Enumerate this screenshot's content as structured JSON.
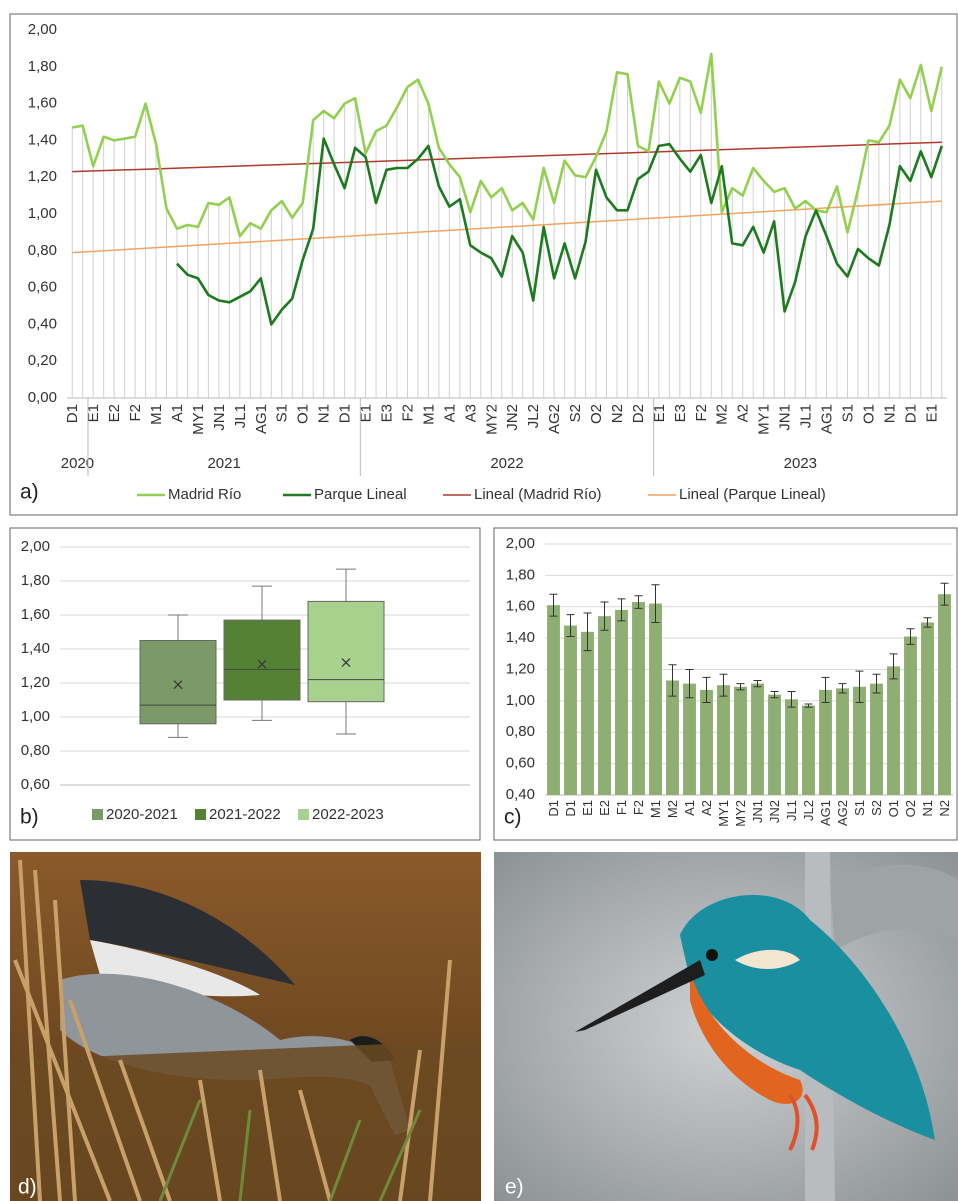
{
  "chart_data": [
    {
      "type": "line",
      "panel_label": "a)",
      "categories": [
        "D1",
        null,
        "E1",
        null,
        "E2",
        null,
        "F2",
        null,
        "M1",
        null,
        "A1",
        null,
        "MY1",
        null,
        "JN1",
        null,
        "JL1",
        null,
        "AG1",
        null,
        "S1",
        null,
        "O1",
        null,
        "N1",
        null,
        "D1",
        null,
        "E1",
        null,
        "E3",
        null,
        "F2",
        null,
        "M1",
        null,
        "A1",
        null,
        "A3",
        null,
        "MY2",
        null,
        "JN2",
        null,
        "JL2",
        null,
        "AG2",
        null,
        "S2",
        null,
        "O2",
        null,
        "N2",
        null,
        "D2",
        null,
        "E1",
        null,
        "E3",
        null,
        "F2",
        null,
        "M2",
        null,
        "A2",
        null,
        "MY1",
        null,
        "JN1",
        null,
        "JL1",
        null,
        "AG1",
        null,
        "S1",
        null,
        "O1",
        null,
        "N1",
        null,
        "D1",
        null,
        "E1",
        null
      ],
      "year_groups": [
        {
          "label": "2020",
          "span": 2
        },
        {
          "label": "2021",
          "span": 26
        },
        {
          "label": "2022",
          "span": 28
        },
        {
          "label": "2023",
          "span": 28
        }
      ],
      "series": [
        {
          "name": "Madrid Río",
          "color": "#92d050",
          "values": [
            1.47,
            1.48,
            1.26,
            1.42,
            1.4,
            1.41,
            1.42,
            1.6,
            1.38,
            1.03,
            0.92,
            0.94,
            0.93,
            1.06,
            1.05,
            1.09,
            0.88,
            0.95,
            0.92,
            1.02,
            1.07,
            0.98,
            1.06,
            1.51,
            1.56,
            1.52,
            1.6,
            1.63,
            1.33,
            1.45,
            1.48,
            1.58,
            1.69,
            1.73,
            1.6,
            1.36,
            1.27,
            1.2,
            1.01,
            1.18,
            1.09,
            1.14,
            1.02,
            1.06,
            0.97,
            1.25,
            1.06,
            1.29,
            1.21,
            1.2,
            1.31,
            1.45,
            1.77,
            1.76,
            1.37,
            1.34,
            1.72,
            1.6,
            1.74,
            1.72,
            1.55,
            1.87,
            1.01,
            1.14,
            1.1,
            1.25,
            1.18,
            1.12,
            1.14,
            1.03,
            1.07,
            1.02,
            1.01,
            1.15,
            0.9,
            1.13,
            1.4,
            1.39,
            1.48,
            1.73,
            1.63,
            1.81,
            1.56,
            1.8
          ]
        },
        {
          "name": "Parque Lineal",
          "color": "#1e7a1e",
          "values": [
            null,
            null,
            null,
            null,
            null,
            null,
            null,
            null,
            null,
            null,
            0.73,
            0.67,
            0.65,
            0.56,
            0.53,
            0.52,
            0.55,
            0.58,
            0.65,
            0.4,
            0.48,
            0.54,
            0.75,
            0.92,
            1.41,
            1.27,
            1.14,
            1.36,
            1.31,
            1.06,
            1.24,
            1.25,
            1.25,
            1.3,
            1.37,
            1.15,
            1.04,
            1.08,
            0.83,
            0.79,
            0.76,
            0.66,
            0.88,
            0.79,
            0.53,
            0.93,
            0.65,
            0.84,
            0.65,
            0.85,
            1.24,
            1.09,
            1.02,
            1.02,
            1.19,
            1.23,
            1.37,
            1.38,
            1.3,
            1.23,
            1.32,
            1.06,
            1.26,
            0.84,
            0.83,
            0.93,
            0.79,
            0.96,
            0.47,
            0.63,
            0.88,
            1.02,
            0.88,
            0.73,
            0.66,
            0.81,
            0.76,
            0.72,
            0.94,
            1.26,
            1.18,
            1.34,
            1.2,
            1.37
          ]
        }
      ],
      "trendlines": [
        {
          "name": "Lineal (Madrid Río)",
          "color": "#b03a2e",
          "values": [
            1.23,
            1.39
          ]
        },
        {
          "name": "Lineal (Parque Lineal)",
          "color": "#f4a460",
          "values": [
            0.79,
            1.07
          ]
        }
      ],
      "drop_lines": true,
      "grid": false,
      "ylim": [
        0,
        2
      ],
      "yticks": [
        {
          "value": 0,
          "label": "0,00"
        },
        {
          "value": 0.2,
          "label": "0,20"
        },
        {
          "value": 0.4,
          "label": "0,40"
        },
        {
          "value": 0.6,
          "label": "0,60"
        },
        {
          "value": 0.8,
          "label": "0,80"
        },
        {
          "value": 1,
          "label": "1,00"
        },
        {
          "value": 1.2,
          "label": "1,20"
        },
        {
          "value": 1.4,
          "label": "1,40"
        },
        {
          "value": 1.6,
          "label": "1,60"
        },
        {
          "value": 1.8,
          "label": "1,80"
        },
        {
          "value": 2,
          "label": "2,00"
        }
      ]
    },
    {
      "type": "box",
      "panel_label": "b)",
      "grid": true,
      "series": [
        {
          "name": "2020-2021",
          "color": "#7a9a68",
          "min": 0.88,
          "q1": 0.96,
          "median": 1.07,
          "q3": 1.45,
          "max": 1.6,
          "mean": 1.19
        },
        {
          "name": "2021-2022",
          "color": "#548235",
          "min": 0.98,
          "q1": 1.1,
          "median": 1.28,
          "q3": 1.57,
          "max": 1.77,
          "mean": 1.31
        },
        {
          "name": "2022-2023",
          "color": "#a9d18e",
          "min": 0.9,
          "q1": 1.09,
          "median": 1.22,
          "q3": 1.68,
          "max": 1.87,
          "mean": 1.32
        }
      ],
      "ylim": [
        0.6,
        2
      ],
      "yticks": [
        {
          "value": 0.6,
          "label": "0,60"
        },
        {
          "value": 0.8,
          "label": "0,80"
        },
        {
          "value": 1,
          "label": "1,00"
        },
        {
          "value": 1.2,
          "label": "1,20"
        },
        {
          "value": 1.4,
          "label": "1,40"
        },
        {
          "value": 1.6,
          "label": "1,60"
        },
        {
          "value": 1.8,
          "label": "1,80"
        },
        {
          "value": 2,
          "label": "2,00"
        }
      ]
    },
    {
      "type": "bar",
      "panel_label": "c)",
      "grid": true,
      "color": "#8faf72",
      "categories": [
        "D1",
        "D1",
        "E1",
        "E2",
        "F1",
        "F2",
        "M1",
        "M2",
        "A1",
        "A2",
        "MY1",
        "MY2",
        "JN1",
        "JN2",
        "JL1",
        "JL2",
        "AG1",
        "AG2",
        "S1",
        "S2",
        "O1",
        "O2",
        "N1",
        "N2"
      ],
      "values": [
        1.61,
        1.48,
        1.44,
        1.54,
        1.58,
        1.63,
        1.62,
        1.13,
        1.11,
        1.07,
        1.1,
        1.09,
        1.11,
        1.04,
        1.01,
        0.97,
        1.07,
        1.08,
        1.09,
        1.11,
        1.22,
        1.41,
        1.5,
        1.68
      ],
      "errors": [
        0.07,
        0.07,
        0.12,
        0.09,
        0.07,
        0.04,
        0.12,
        0.1,
        0.09,
        0.08,
        0.07,
        0.02,
        0.02,
        0.02,
        0.05,
        0.01,
        0.08,
        0.03,
        0.1,
        0.06,
        0.08,
        0.05,
        0.03,
        0.07
      ],
      "ylim": [
        0.4,
        2
      ],
      "yticks": [
        {
          "value": 0.4,
          "label": "0,40"
        },
        {
          "value": 0.6,
          "label": "0,60"
        },
        {
          "value": 0.8,
          "label": "0,80"
        },
        {
          "value": 1,
          "label": "1,00"
        },
        {
          "value": 1.2,
          "label": "1,20"
        },
        {
          "value": 1.4,
          "label": "1,40"
        },
        {
          "value": 1.6,
          "label": "1,60"
        },
        {
          "value": 1.8,
          "label": "1,80"
        },
        {
          "value": 2,
          "label": "2,00"
        }
      ]
    }
  ],
  "photos": [
    {
      "label": "d)"
    },
    {
      "label": "e)"
    }
  ]
}
